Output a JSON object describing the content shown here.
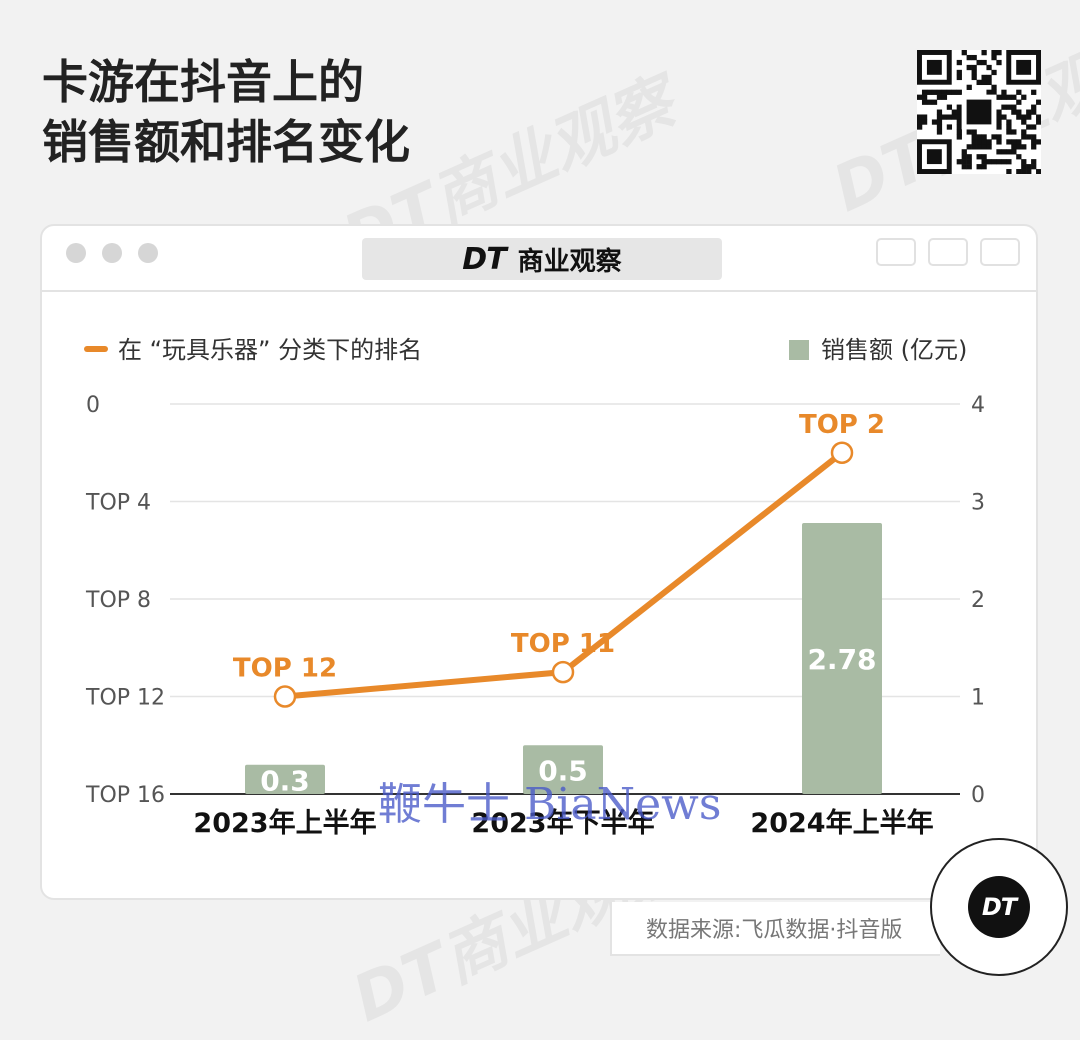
{
  "header": {
    "title_line1": "卡游在抖音上的",
    "title_line2": "销售额和排名变化"
  },
  "window": {
    "tab_brand": "DT",
    "tab_label": "商业观察"
  },
  "colors": {
    "line": "#E8892A",
    "bar": "#A9BBA4",
    "label_text": "#E8892A"
  },
  "chart_data": {
    "type": "bar+line",
    "categories": [
      "2023年上半年",
      "2023年下半年",
      "2024年上半年"
    ],
    "legend": {
      "line_label": "在 “玩具乐器” 分类下的排名",
      "bar_label": "销售额 (亿元)"
    },
    "series": [
      {
        "name": "在 “玩具乐器” 分类下的排名",
        "type": "line",
        "axis": "left",
        "values": [
          12,
          11,
          2
        ],
        "labels": [
          "TOP 12",
          "TOP 11",
          "TOP 2"
        ]
      },
      {
        "name": "销售额 (亿元)",
        "type": "bar",
        "axis": "right",
        "values": [
          0.3,
          0.5,
          2.78
        ],
        "labels": [
          "0.3",
          "0.5",
          "2.78"
        ]
      }
    ],
    "left_axis": {
      "inverted": true,
      "range": [
        0,
        16
      ],
      "ticks": [
        0,
        4,
        8,
        12,
        16
      ],
      "tick_labels": [
        "0",
        "TOP 4",
        "TOP 8",
        "TOP 12",
        "TOP 16"
      ]
    },
    "right_axis": {
      "range": [
        0,
        4
      ],
      "ticks": [
        0,
        1,
        2,
        3,
        4
      ],
      "tick_labels": [
        "0",
        "1",
        "2",
        "3",
        "4"
      ]
    },
    "grid": true
  },
  "footer": {
    "source": "数据来源:飞瓜数据·抖音版",
    "badge": "DT"
  },
  "overlay_watermark": "鞭牛士 BiaNews",
  "background_watermark": "DT商业观察"
}
